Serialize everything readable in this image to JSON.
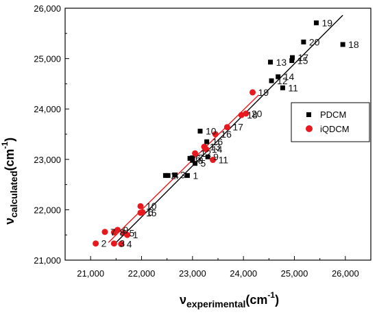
{
  "chart_data": {
    "type": "scatter",
    "xlabel": {
      "main": "ν",
      "sub": "experimental",
      "unit": "(cm",
      "sup": "-1",
      "close": ")"
    },
    "ylabel": {
      "main": "ν",
      "sub": "calculated",
      "unit": "(cm",
      "sup": "-1",
      "close": ")"
    },
    "xlim": [
      20500,
      26500
    ],
    "ylim": [
      21000,
      26000
    ],
    "xticks": [
      21000,
      22000,
      23000,
      24000,
      25000,
      26000
    ],
    "yticks": [
      21000,
      22000,
      23000,
      24000,
      25000,
      26000
    ],
    "xtick_labels": [
      "21,000",
      "22,000",
      "23,000",
      "24,000",
      "25,000",
      "26,000"
    ],
    "ytick_labels": [
      "21,000",
      "22,000",
      "23,000",
      "24,000",
      "25,000",
      "26,000"
    ],
    "legend": {
      "placement": "right",
      "entries": [
        "PDCM",
        "iQDCM"
      ]
    },
    "series": [
      {
        "name": "PDCM",
        "color": "#000000",
        "marker": "square",
        "fit": {
          "x": [
            21500,
            25950
          ],
          "y": [
            21350,
            25860
          ]
        },
        "points": [
          {
            "label": "1",
            "x": 22900,
            "y": 22680
          },
          {
            "label": "2",
            "x": 22470,
            "y": 22680
          },
          {
            "label": "3",
            "x": 22650,
            "y": 22690
          },
          {
            "label": "4",
            "x": 22520,
            "y": 22680
          },
          {
            "label": "5",
            "x": 23050,
            "y": 22920
          },
          {
            "label": "6",
            "x": 22950,
            "y": 23020
          },
          {
            "label": "7",
            "x": 23000,
            "y": 23030
          },
          {
            "label": "8",
            "x": 23000,
            "y": 22980
          },
          {
            "label": "9",
            "x": 23300,
            "y": 23050
          },
          {
            "label": "10",
            "x": 23150,
            "y": 23560
          },
          {
            "label": "11",
            "x": 24770,
            "y": 24420
          },
          {
            "label": "12",
            "x": 24550,
            "y": 24560
          },
          {
            "label": "13",
            "x": 24530,
            "y": 24930
          },
          {
            "label": "14",
            "x": 24680,
            "y": 24640
          },
          {
            "label": "15",
            "x": 24950,
            "y": 24960
          },
          {
            "label": "16",
            "x": 23280,
            "y": 23350
          },
          {
            "label": "17",
            "x": 24960,
            "y": 25020
          },
          {
            "label": "18",
            "x": 25950,
            "y": 25280
          },
          {
            "label": "19",
            "x": 25430,
            "y": 25710
          },
          {
            "label": "20",
            "x": 25180,
            "y": 25330
          }
        ]
      },
      {
        "name": "iQDCM",
        "color": "#e8191e",
        "marker": "circle",
        "fit": {
          "x": [
            21350,
            24300
          ],
          "y": [
            21350,
            24280
          ]
        },
        "points": [
          {
            "label": "1",
            "x": 21720,
            "y": 21500
          },
          {
            "label": "2",
            "x": 21100,
            "y": 21330
          },
          {
            "label": "3",
            "x": 21460,
            "y": 21330
          },
          {
            "label": "4",
            "x": 21600,
            "y": 21320
          },
          {
            "label": "5",
            "x": 21650,
            "y": 21540
          },
          {
            "label": "6",
            "x": 22020,
            "y": 21950
          },
          {
            "label": "7",
            "x": 21280,
            "y": 21560
          },
          {
            "label": "8",
            "x": 21460,
            "y": 21550
          },
          {
            "label": "9",
            "x": 21530,
            "y": 21600
          },
          {
            "label": "10",
            "x": 21980,
            "y": 22070
          },
          {
            "label": "11",
            "x": 23400,
            "y": 22990
          },
          {
            "label": "12",
            "x": 23050,
            "y": 23120
          },
          {
            "label": "13",
            "x": 23230,
            "y": 23250
          },
          {
            "label": "14",
            "x": 23270,
            "y": 23200
          },
          {
            "label": "15",
            "x": 21980,
            "y": 21940
          },
          {
            "label": "16",
            "x": 23450,
            "y": 23500
          },
          {
            "label": "17",
            "x": 23680,
            "y": 23640
          },
          {
            "label": "18",
            "x": 23960,
            "y": 23880
          },
          {
            "label": "19",
            "x": 24180,
            "y": 24330
          },
          {
            "label": "20",
            "x": 24050,
            "y": 23910
          }
        ]
      }
    ]
  }
}
